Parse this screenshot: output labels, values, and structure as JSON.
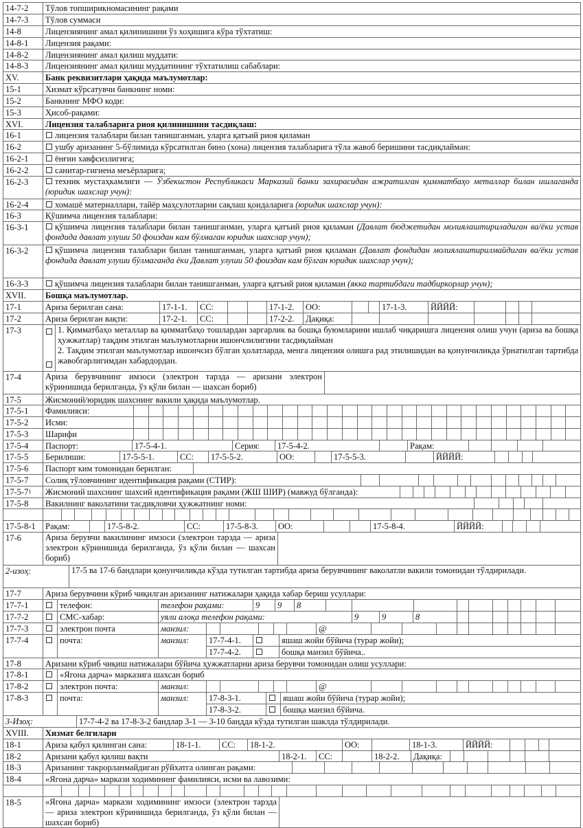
{
  "labels": {
    "cc": "СС:",
    "oo": "ОО:",
    "yyyy": "ЙЙЙЙ:",
    "min": "Дақиқа:",
    "manzil": "манзил:",
    "at": "@",
    "nine": "9",
    "eight": "8"
  },
  "rows": {
    "r1472": {
      "num": "14-7-2",
      "text": "Тўлов топширикномасининг рақами"
    },
    "r1473": {
      "num": "14-7-3",
      "text": "Тўлов суммаси"
    },
    "r148": {
      "num": "14-8",
      "text": "Лицензиянинг амал қилинишини ўз хоҳишига кўра тўхтатиш:"
    },
    "r1481": {
      "num": "14-8-1",
      "text": "Лицензия рақами:"
    },
    "r1482": {
      "num": "14-8-2",
      "text": "Лицензиянинг амал қилиш муддати:"
    },
    "r1483": {
      "num": "14-8-3",
      "text": "Лицензиянинг амал қилиш муддатининг тўхтатилиш сабаблари:"
    },
    "sXV": {
      "num": "XV.",
      "text": "Банк реквизитлари ҳақида маълумотлар:"
    },
    "r151": {
      "num": "15-1",
      "text": "Хизмат кўрсатувчи банкнинг номи:"
    },
    "r152": {
      "num": "15-2",
      "text": "Банкнинг МФО коди:"
    },
    "r153": {
      "num": "15-3",
      "text": "Ҳисоб-рақами:"
    },
    "sXVI": {
      "num": "XVI.",
      "text": "Лицензия талабларига риоя қилинишини тасдиқлаш:"
    },
    "r161": {
      "num": "16-1",
      "text": "лицензия талаблари билан танишганман, уларга қатъий риоя қиламан"
    },
    "r162": {
      "num": "16-2",
      "text": "ушбу аризанинг 5-бўлимида кўрсатилган бино (хона) лицензия талабларига тўла жавоб беришини тасдиқлайман:"
    },
    "r1621": {
      "num": "16-2-1",
      "text": "ёнғин хавфсизлигига;"
    },
    "r1622": {
      "num": "16-2-2",
      "text": "санитар-гигиена меъёрларига;"
    },
    "r1623": {
      "num": "16-2-3",
      "text": "техник мустаҳкамлиги — ",
      "em": "Ўзбекистон Республикаси Марказий банки захирасидан ажратилган қимматбаҳо металлар билан ишлаганда (юридик шахслар учун):"
    },
    "r1624": {
      "num": "16-2-4",
      "text": "хомашё материаллари, тайёр маҳсулотларни сақлаш қоидаларига ",
      "em": "(юридик шахслар учун):"
    },
    "r163": {
      "num": "16-3",
      "text": "Қўшимча лицензия талаблари:"
    },
    "r1631": {
      "num": "16-3-1",
      "text": "қўшимча лицензия талаблари билан танишганман, уларга қатъий риоя қиламан ",
      "em": "(Давлат бюджетидан молиялаштириладиган ва/ёки устав фондида давлат улуши 50 фоиздан кам бўлмаган юридик шахслар учун);"
    },
    "r1632": {
      "num": "16-3-2",
      "text": "қўшимча лицензия талаблари билан танишганман, уларга қатъий риоя қиламан ",
      "em": "(Давлат фондидан молиялаштирилмайдиган ва/ёки устав фондида давлат улуши бўлмаганда ёки Давлат улуши 50 фоиздан кам бўлган юридик шахслар учун);"
    },
    "r1633": {
      "num": "16-3-3",
      "text": "қўшимча лицензия талаблари билан танишганман, уларга қатъий риоя қиламан ",
      "em": "(якка тартибдаги тадбиркорлар учун);"
    },
    "sXVII": {
      "num": "XVII.",
      "text": "Бошқа маълумотлар."
    },
    "r171": {
      "num": "17-1",
      "text": "Ариза берилган сана:",
      "c1": "17-1-1.",
      "c2": "17-1-2.",
      "c3": "17-1-3."
    },
    "r172": {
      "num": "17-2",
      "text": "Ариза берилган вақти:",
      "c1": "17-2-1.",
      "c2": "17-2-2."
    },
    "r173": {
      "num": "17-3",
      "p1": "1. Қимматбаҳо металлар ва қимматбаҳо тошлардан заргарлик ва бошқа буюмларини ишлаб чиқаришга лицензия олиш учун (ариза ва бошқа ҳужжатлар) тақдим этилган маълумотларни ишончлилигини тасдиқлайман",
      "p2": "2. Тақдим этилган маълумотлар ишончсиз бўлган ҳолатларда, менга лицензия олишга рад этилишидан ва қонунчиликда ўрнатилган тартибда жавобгарлигимдан хабардордан."
    },
    "r174": {
      "num": "17-4",
      "text": "Ариза берувчининг имзоси (электрон тарзда — аризани электрон кўринишида берилганда, ўз қўли билан — шахсан бориб)"
    },
    "r175": {
      "num": "17-5",
      "text": "Жисмоний/юридик шахснинг вакили ҳақида маълумотлар."
    },
    "r1751": {
      "num": "17-5-1",
      "text": "Фамилияси:"
    },
    "r1752": {
      "num": "17-5-2",
      "text": "Исми:"
    },
    "r1753": {
      "num": "17-5-3",
      "text": "Шарифи"
    },
    "r1754": {
      "num": "17-5-4",
      "text": "Паспорт:",
      "c1": "17-5-4-1.",
      "series": "Серия:",
      "c2": "17-5-4-2.",
      "number": "Рақам:"
    },
    "r1755": {
      "num": "17-5-5",
      "text": "Берилиши:",
      "c1": "17-5-5-1.",
      "c2": "17-5-5-2.",
      "c3": "17-5-5-3."
    },
    "r1756": {
      "num": "17-5-6",
      "text": "Паспорт ким томонидан берилган:"
    },
    "r1757": {
      "num": "17-5-7",
      "text": "Солиқ тўловчининг идентификация рақами (СТИР):"
    },
    "r17571": {
      "num": "17-5-7",
      "sup": "1",
      "text": "Жисмоний шахснинг шахсий идентификация рақами (ЖШ ШИР) (мавжуд бўлганда):"
    },
    "r1758": {
      "num": "17-5-8",
      "text": "Вакилнинг ваколатини тасдиқловчи ҳужжатнинг номи:"
    },
    "r17581": {
      "num": "17-5-8-1",
      "text": "Рақам:",
      "c2": "17-5-8-2.",
      "c3": "17-5-8-3.",
      "c4": "17-5-8-4."
    },
    "r176": {
      "num": "17-6",
      "text": "Ариза берувчи вакилининг имзоси (электрон тарзда — ариза электрон кўринишида берилганда, ўз қўли билан — шахсан бориб)"
    },
    "note2": {
      "label": "2-изоҳ:",
      "text": "17-5 ва 17-6 бандлари қонунчиликда кўзда тутилган тартибда ариза берувчининг ваколатли вакили томонидан тўлдирилади."
    },
    "r177": {
      "num": "17-7",
      "text": "Ариза берувчини кўриб чиқилган аризанинг натижалари ҳақида хабар бериш усуллари:"
    },
    "r1771": {
      "num": "17-7-1",
      "text": "телефон:",
      "hint": "телефон рақами:"
    },
    "r1772": {
      "num": "17-7-2",
      "text": "СМС-хабар:",
      "hint": "уяли алоқа телефон рақами:"
    },
    "r1773": {
      "num": "17-7-3",
      "text": "электрон почта"
    },
    "r1774": {
      "num": "17-7-4",
      "text": "почта:",
      "c1": "17-7-4-1.",
      "o1": "яшаш жойи бўйича (турар жойи);",
      "c2": "17-7-4-2.",
      "o2": "бошқа манзил бўйича.."
    },
    "r178": {
      "num": "17-8",
      "text": "Аризани кўриб чиқиш натижалари бўйича ҳужжатларни ариза берувчи томонидан олиш усуллари:"
    },
    "r1781": {
      "num": "17-8-1",
      "text": "«Ягона дарча» марказига шахсан бориб"
    },
    "r1782": {
      "num": "17-8-2",
      "text": "электрон почта:"
    },
    "r1783": {
      "num": "17-8-3",
      "text": "почта:",
      "c1": "17-8-3-1.",
      "o1": "яшаш жойи бўйича (турар жойи);",
      "c2": "17-8-3-2.",
      "o2": "бошқа манзил бўйича."
    },
    "note3": {
      "label": "3-Изоҳ:",
      "text": "17-7-4-2 ва 17-8-3-2 бандлар 3-1 — 3-10 бандда кўзда тутилган шаклда тўлдирилади."
    },
    "sXVIII": {
      "num": "XVIII.",
      "text": "Хизмат белгилари"
    },
    "r181": {
      "num": "18-1",
      "text": "Ариза қабул қилинган сана:",
      "c1": "18-1-1.",
      "c2": "18-1-2.",
      "c3": "18-1-3."
    },
    "r182": {
      "num": "18-2",
      "text": "Аризани қабул қилиш вақти",
      "c1": "18-2-1.",
      "c2": "18-2-2."
    },
    "r183": {
      "num": "18-3",
      "text": "Аризанинг такрорланмайдиган рўйхатга олинган рақами:"
    },
    "r184": {
      "num": "18-4",
      "text": "«Ягона дарча» маркази ходимининг фамилияси, исми ва лавозими:"
    },
    "r185": {
      "num": "18-5",
      "text": "«Ягона дарча» маркази ходимининг имзоси (электрон тарзда — ариза электрон кўринишида берилганда, ўз қўли билан — шахсан бориб)"
    }
  }
}
